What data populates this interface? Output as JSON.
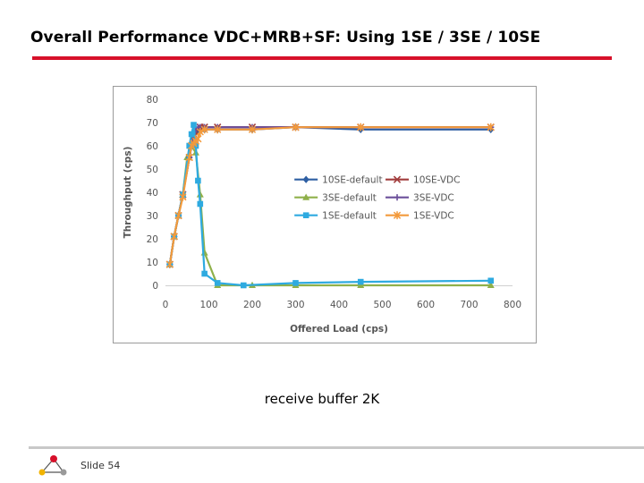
{
  "slide": {
    "title": "Overall Performance VDC+MRB+SF: Using 1SE / 3SE / 10SE",
    "caption": "receive buffer 2K",
    "slide_number": "Slide 54",
    "accent_color": "#d7102a",
    "logo_icon": "tri-node-logo-icon"
  },
  "chart_data": {
    "type": "line",
    "title": "",
    "xlabel": "Offered Load (cps)",
    "ylabel": "Throughput (cps)",
    "xlim": [
      0,
      800
    ],
    "ylim": [
      0,
      80
    ],
    "xticks": [
      0,
      100,
      200,
      300,
      400,
      500,
      600,
      700,
      800
    ],
    "yticks": [
      0,
      10,
      20,
      30,
      40,
      50,
      60,
      70,
      80
    ],
    "grid": false,
    "legend_position": "center-right",
    "series": [
      {
        "name": "10SE-default",
        "color": "#2e5fa3",
        "marker": "diamond",
        "x": [
          10,
          20,
          30,
          40,
          55,
          60,
          65,
          70,
          75,
          80,
          90,
          120,
          200,
          300,
          450,
          750
        ],
        "y": [
          9,
          21,
          30,
          39,
          55,
          60,
          64,
          66,
          67,
          67,
          67,
          67,
          67,
          68,
          67,
          67
        ]
      },
      {
        "name": "10SE-VDC",
        "color": "#a13c3c",
        "marker": "x",
        "x": [
          10,
          20,
          30,
          40,
          55,
          60,
          65,
          70,
          75,
          80,
          90,
          120,
          200,
          300,
          450,
          750
        ],
        "y": [
          9,
          21,
          30,
          39,
          55,
          60,
          64,
          66,
          67,
          68,
          68,
          68,
          68,
          68,
          68,
          68
        ]
      },
      {
        "name": "3SE-default",
        "color": "#8fb04a",
        "marker": "triangle",
        "x": [
          10,
          20,
          30,
          40,
          50,
          60,
          70,
          80,
          90,
          120,
          200,
          300,
          450,
          750
        ],
        "y": [
          9,
          21,
          30,
          39,
          55,
          60,
          57,
          39,
          14,
          0,
          0,
          0,
          0,
          0
        ]
      },
      {
        "name": "3SE-VDC",
        "color": "#6b4f9a",
        "marker": "plus",
        "x": [
          10,
          20,
          30,
          40,
          55,
          60,
          65,
          70,
          75,
          80,
          90,
          120,
          200,
          300,
          450,
          750
        ],
        "y": [
          9,
          21,
          30,
          39,
          55,
          60,
          64,
          67,
          68,
          68,
          68,
          68,
          68,
          68,
          68,
          68
        ]
      },
      {
        "name": "1SE-default",
        "color": "#2eaae0",
        "marker": "square",
        "x": [
          10,
          20,
          30,
          40,
          55,
          60,
          65,
          70,
          75,
          80,
          90,
          120,
          180,
          300,
          450,
          750
        ],
        "y": [
          9,
          21,
          30,
          39,
          60,
          65,
          69,
          60,
          45,
          35,
          5,
          1,
          0,
          1,
          1.5,
          2
        ]
      },
      {
        "name": "1SE-VDC",
        "color": "#f39a3b",
        "marker": "asterisk",
        "x": [
          10,
          20,
          30,
          40,
          55,
          60,
          65,
          70,
          75,
          80,
          90,
          120,
          200,
          300,
          450,
          750
        ],
        "y": [
          9,
          21,
          30,
          38,
          55,
          60,
          61,
          62,
          63,
          66,
          67,
          67,
          67,
          68,
          68,
          68
        ]
      }
    ]
  }
}
